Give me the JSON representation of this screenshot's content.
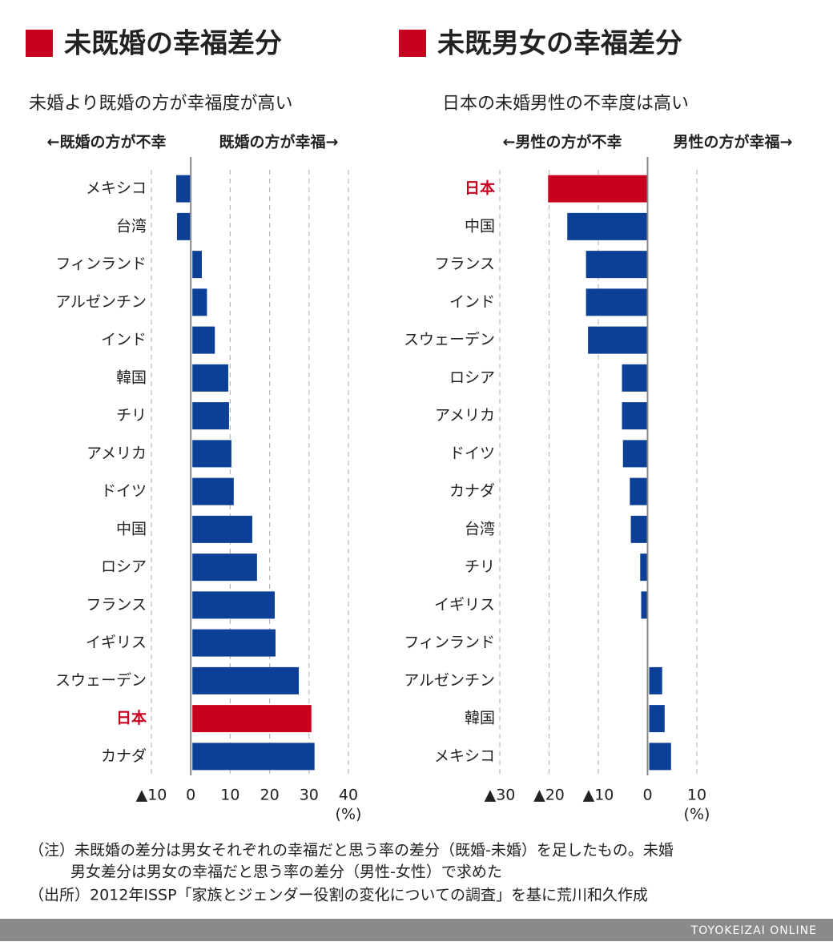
{
  "chart_data": [
    {
      "type": "bar",
      "orientation": "horizontal",
      "title": "未既婚の幸福差分",
      "subtitle": "未婚より既婚の方が幸福度が高い",
      "left_label": "←既婚の方が不幸",
      "right_label": "既婚の方が幸福→",
      "categories": [
        "メキシコ",
        "台湾",
        "フィンランド",
        "アルゼンチン",
        "インド",
        "韓国",
        "チリ",
        "アメリカ",
        "ドイツ",
        "中国",
        "ロシア",
        "フランス",
        "イギリス",
        "スウェーデン",
        "日本",
        "カナダ"
      ],
      "values": [
        -3.7,
        -3.5,
        2.6,
        3.9,
        5.9,
        9.3,
        9.5,
        10.1,
        10.7,
        15.4,
        16.6,
        21.1,
        21.3,
        27.2,
        30.4,
        31.2
      ],
      "colors": [
        "#0c3f96",
        "#0c3f96",
        "#0c3f96",
        "#0c3f96",
        "#0c3f96",
        "#0c3f96",
        "#0c3f96",
        "#0c3f96",
        "#0c3f96",
        "#0c3f96",
        "#0c3f96",
        "#0c3f96",
        "#0c3f96",
        "#0c3f96",
        "#c8001e",
        "#0c3f96"
      ],
      "default_color": "#0c3f96",
      "xlim": [
        -10,
        40
      ],
      "xticks": [
        {
          "value": -10,
          "label": "▲10"
        },
        0,
        10,
        20,
        30,
        40
      ],
      "xlabel": "(%)",
      "grid": true
    },
    {
      "type": "bar",
      "orientation": "horizontal",
      "title": "未既男女の幸福差分",
      "subtitle": "日本の未婚男性の不幸度は高い",
      "left_label": "←男性の方が不幸",
      "right_label": "男性の方が幸福→",
      "categories": [
        "日本",
        "中国",
        "フランス",
        "インド",
        "スウェーデン",
        "ロシア",
        "アメリカ",
        "ドイツ",
        "カナダ",
        "台湾",
        "チリ",
        "イギリス",
        "フィンランド",
        "アルゼンチン",
        "韓国",
        "メキシコ"
      ],
      "values": [
        -20.2,
        -16.3,
        -12.5,
        -12.5,
        -12.1,
        -5.2,
        -5.2,
        -5.0,
        -3.6,
        -3.4,
        -1.5,
        -1.3,
        0,
        2.8,
        3.3,
        4.6
      ],
      "colors": [
        "#c8001e",
        "#0c3f96",
        "#0c3f96",
        "#0c3f96",
        "#0c3f96",
        "#0c3f96",
        "#0c3f96",
        "#0c3f96",
        "#0c3f96",
        "#0c3f96",
        "#0c3f96",
        "#0c3f96",
        "#0c3f96",
        "#0c3f96",
        "#0c3f96",
        "#0c3f96"
      ],
      "default_color": "#0c3f96",
      "xlim": [
        -30,
        10
      ],
      "xticks": [
        {
          "value": -30,
          "label": "▲30"
        },
        {
          "value": -20,
          "label": "▲20"
        },
        {
          "value": -10,
          "label": "▲10"
        },
        0,
        10
      ],
      "xlabel": "(%)",
      "grid": true
    }
  ],
  "notes": [
    "（注）未既婚の差分は男女それぞれの幸福だと思う率の差分（既婚-未婚）を足したもの。未婚",
    "男女差分は男女の幸福だと思う率の差分（男性-女性）で求めた",
    "（出所）2012年ISSP「家族とジェンダー役割の変化についての調査」を基に荒川和久作成"
  ],
  "footer": "TOYOKEIZAI ONLINE"
}
